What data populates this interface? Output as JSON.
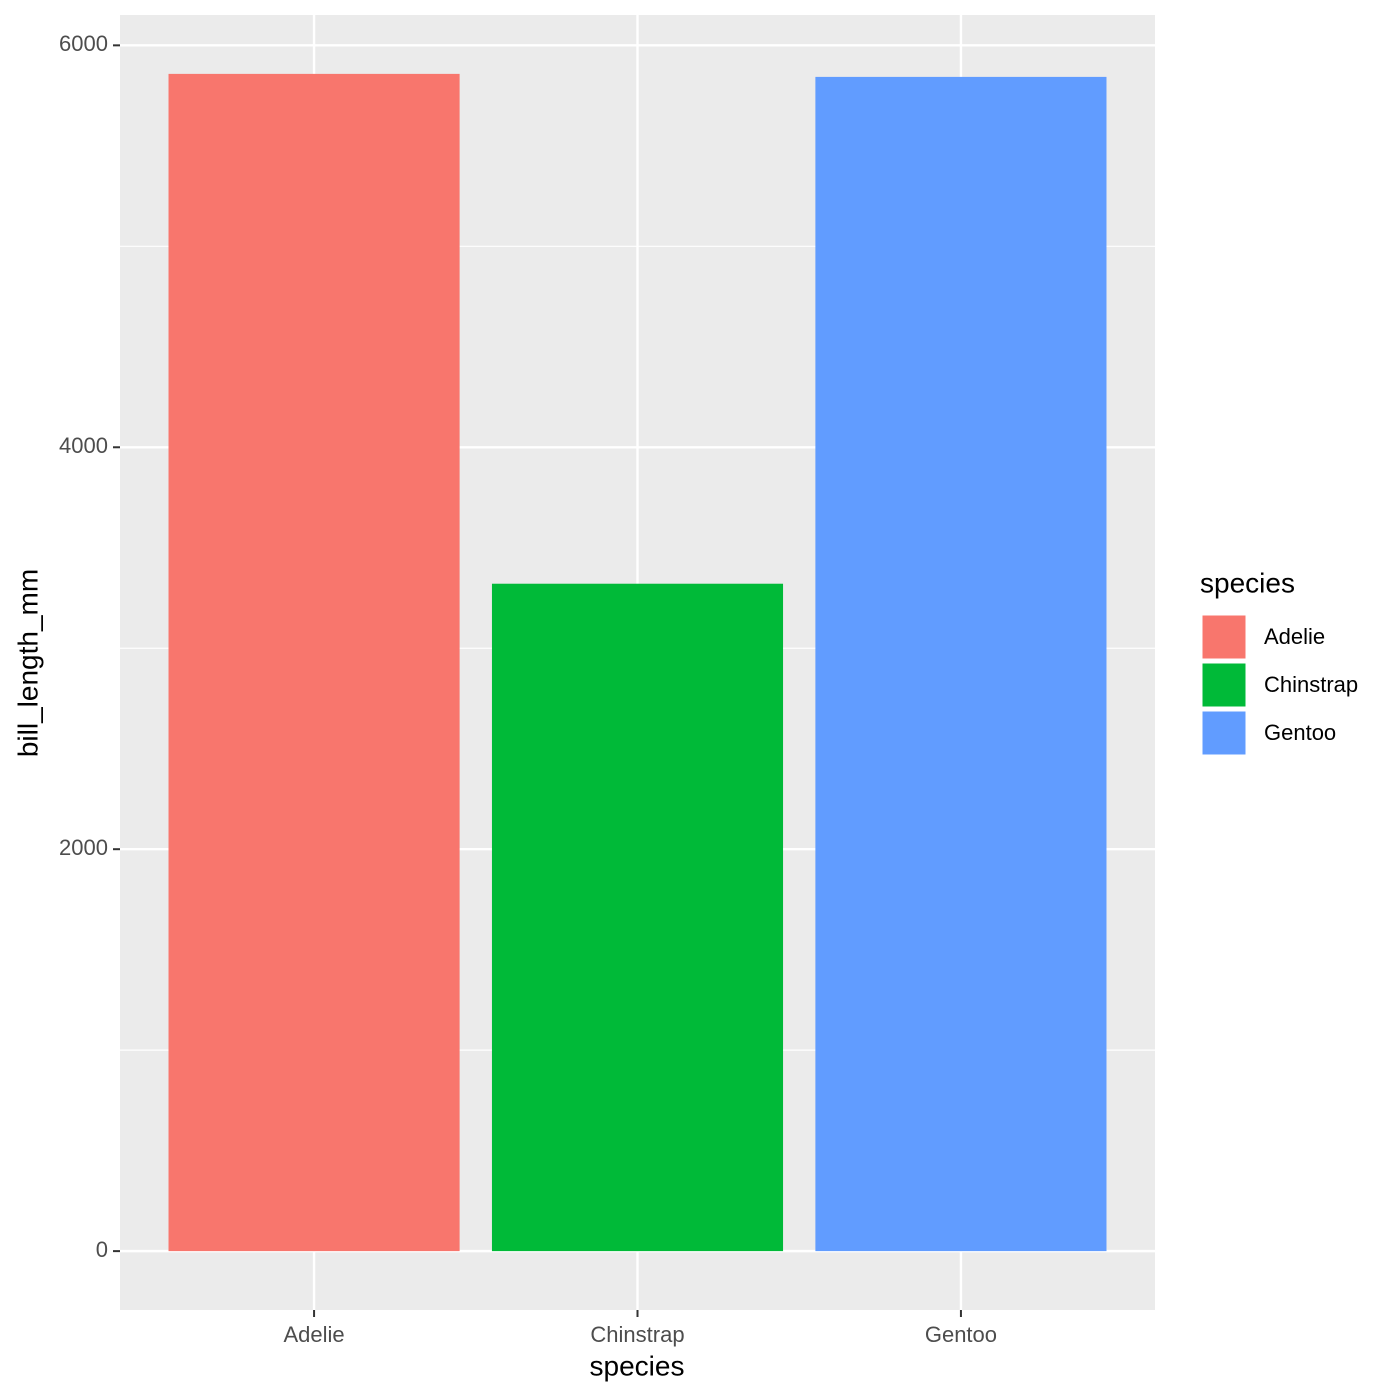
{
  "chart_data": {
    "type": "bar",
    "x_label": "species",
    "y_label": "bill_length_mm",
    "categories": [
      "Adelie",
      "Chinstrap",
      "Gentoo"
    ],
    "values": [
      5858,
      3321,
      5843
    ],
    "colors": [
      "#f8766d",
      "#00ba38",
      "#619cff"
    ],
    "ylim": [
      -293,
      6151
    ],
    "yticks": [
      0,
      2000,
      4000,
      6000
    ],
    "minor_yticks": [
      1000,
      3000,
      5000
    ],
    "grid": true,
    "legend": {
      "title": "species",
      "position": "right"
    }
  }
}
